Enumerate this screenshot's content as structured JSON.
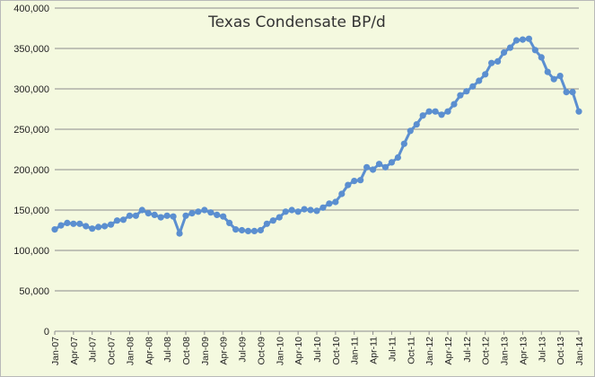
{
  "chart_data": {
    "type": "line",
    "title": "Texas Condensate BP/d",
    "xlabel": "",
    "ylabel": "",
    "ylim": [
      0,
      400000
    ],
    "yticks": [
      0,
      50000,
      100000,
      150000,
      200000,
      250000,
      300000,
      350000,
      400000
    ],
    "ytick_labels": [
      "0",
      "50,000",
      "100,000",
      "150,000",
      "200,000",
      "250,000",
      "300,000",
      "350,000",
      "400,000"
    ],
    "xtick_labels": [
      "Jan-07",
      "Apr-07",
      "Jul-07",
      "Oct-07",
      "Jan-08",
      "Apr-08",
      "Jul-08",
      "Oct-08",
      "Jan-09",
      "Apr-09",
      "Jul-09",
      "Oct-09",
      "Jan-10",
      "Apr-10",
      "Jul-10",
      "Oct-10",
      "Jan-11",
      "Apr-11",
      "Jul-11",
      "Oct-11",
      "Jan-12",
      "Apr-12",
      "Jul-12",
      "Oct-12",
      "Jan-13",
      "Apr-13",
      "Jul-13",
      "Oct-13",
      "Jan-14"
    ],
    "grid": "horizontal",
    "legend": "none",
    "line_color": "#5b8fd0",
    "x": [
      "Jan-07",
      "Feb-07",
      "Mar-07",
      "Apr-07",
      "May-07",
      "Jun-07",
      "Jul-07",
      "Aug-07",
      "Sep-07",
      "Oct-07",
      "Nov-07",
      "Dec-07",
      "Jan-08",
      "Feb-08",
      "Mar-08",
      "Apr-08",
      "May-08",
      "Jun-08",
      "Jul-08",
      "Aug-08",
      "Sep-08",
      "Oct-08",
      "Nov-08",
      "Dec-08",
      "Jan-09",
      "Feb-09",
      "Mar-09",
      "Apr-09",
      "May-09",
      "Jun-09",
      "Jul-09",
      "Aug-09",
      "Sep-09",
      "Oct-09",
      "Nov-09",
      "Dec-09",
      "Jan-10",
      "Feb-10",
      "Mar-10",
      "Apr-10",
      "May-10",
      "Jun-10",
      "Jul-10",
      "Aug-10",
      "Sep-10",
      "Oct-10",
      "Nov-10",
      "Dec-10",
      "Jan-11",
      "Feb-11",
      "Mar-11",
      "Apr-11",
      "May-11",
      "Jun-11",
      "Jul-11",
      "Aug-11",
      "Sep-11",
      "Oct-11",
      "Nov-11",
      "Dec-11",
      "Jan-12",
      "Feb-12",
      "Mar-12",
      "Apr-12",
      "May-12",
      "Jun-12",
      "Jul-12",
      "Aug-12",
      "Sep-12",
      "Oct-12",
      "Nov-12",
      "Dec-12",
      "Jan-13",
      "Feb-13",
      "Mar-13",
      "Apr-13",
      "May-13",
      "Jun-13",
      "Jul-13",
      "Aug-13",
      "Sep-13",
      "Oct-13",
      "Nov-13",
      "Dec-13",
      "Jan-14"
    ],
    "series": [
      {
        "values": [
          126000,
          131000,
          134000,
          133000,
          133000,
          130000,
          127000,
          129000,
          130000,
          132000,
          137000,
          138000,
          143000,
          143000,
          150000,
          146000,
          144000,
          141000,
          143000,
          142000,
          121000,
          143000,
          146000,
          148000,
          150000,
          147000,
          144000,
          142000,
          134000,
          126000,
          125000,
          124000,
          124000,
          125000,
          133000,
          137000,
          141000,
          148000,
          150000,
          148000,
          151000,
          150000,
          149000,
          153000,
          158000,
          160000,
          170000,
          181000,
          186000,
          187000,
          203000,
          200000,
          207000,
          203000,
          209000,
          215000,
          232000,
          248000,
          256000,
          267000,
          272000,
          272000,
          268000,
          272000,
          281000,
          292000,
          297000,
          303000,
          310000,
          318000,
          332000,
          334000,
          345000,
          351000,
          360000,
          361000,
          362000,
          348000,
          339000,
          321000,
          312000,
          316000,
          296000,
          296000,
          272000
        ]
      }
    ]
  }
}
